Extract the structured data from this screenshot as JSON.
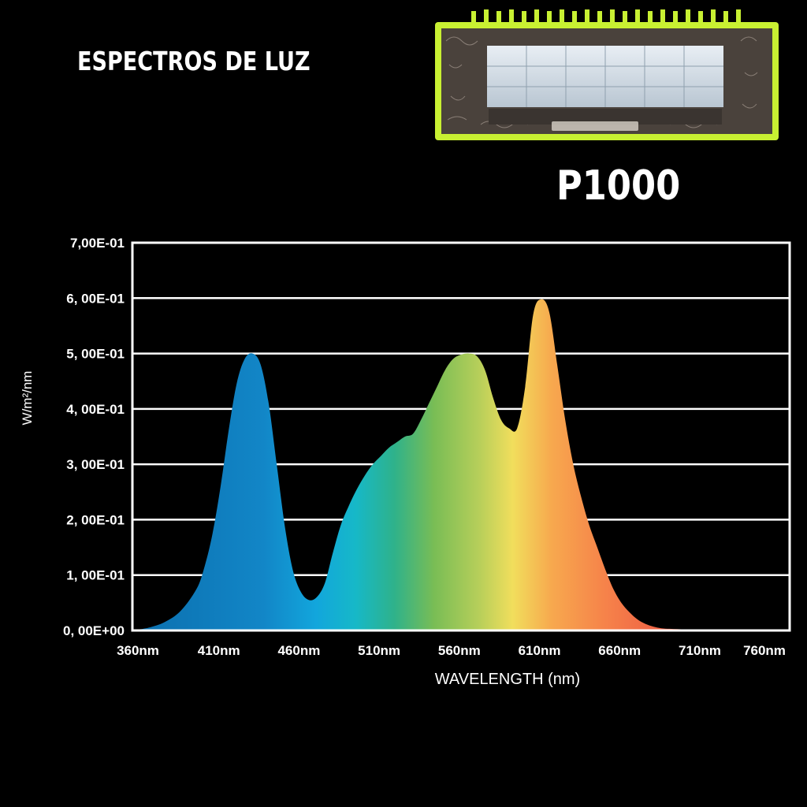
{
  "header": {
    "title": "ESPECTROS DE LUZ",
    "model": "P1000"
  },
  "colors": {
    "background": "#000000",
    "frame": "#c8f032",
    "grid": "#ffffff"
  },
  "chart_data": {
    "type": "area",
    "title": "",
    "xlabel": "WAVELENGTH (nm)",
    "ylabel": "W/m²/nm",
    "xlim": [
      360,
      770
    ],
    "ylim": [
      0,
      0.7
    ],
    "grid": true,
    "y_ticks": [
      {
        "value": 0.0,
        "label": "0, 00E+00"
      },
      {
        "value": 0.1,
        "label": "1, 00E-01"
      },
      {
        "value": 0.2,
        "label": "2, 00E-01"
      },
      {
        "value": 0.3,
        "label": "3, 00E-01"
      },
      {
        "value": 0.4,
        "label": "4, 00E-01"
      },
      {
        "value": 0.5,
        "label": "5, 00E-01"
      },
      {
        "value": 0.6,
        "label": "6, 00E-01"
      },
      {
        "value": 0.7,
        "label": "7,00E-01"
      }
    ],
    "x_ticks": [
      {
        "value": 360,
        "label": "360nm"
      },
      {
        "value": 410,
        "label": "410nm"
      },
      {
        "value": 460,
        "label": "460nm"
      },
      {
        "value": 510,
        "label": "510nm"
      },
      {
        "value": 560,
        "label": "560nm"
      },
      {
        "value": 610,
        "label": "610nm"
      },
      {
        "value": 660,
        "label": "660nm"
      },
      {
        "value": 710,
        "label": "710nm"
      },
      {
        "value": 760,
        "label": "760nm"
      }
    ],
    "series": [
      {
        "x": [
          360,
          370,
          380,
          390,
          400,
          405,
          410,
          415,
          420,
          425,
          430,
          435,
          440,
          445,
          450,
          455,
          460,
          465,
          470,
          475,
          480,
          485,
          490,
          495,
          500,
          505,
          510,
          515,
          520,
          525,
          530,
          535,
          540,
          545,
          550,
          555,
          560,
          565,
          570,
          575,
          580,
          585,
          590,
          595,
          600,
          605,
          610,
          615,
          620,
          625,
          630,
          635,
          640,
          645,
          650,
          655,
          660,
          665,
          670,
          675,
          680,
          685,
          690,
          695,
          700,
          705,
          710,
          715,
          720,
          725,
          730,
          740,
          750,
          760,
          770
        ],
        "y": [
          0.0,
          0.005,
          0.015,
          0.035,
          0.075,
          0.115,
          0.175,
          0.26,
          0.36,
          0.445,
          0.49,
          0.5,
          0.48,
          0.41,
          0.3,
          0.19,
          0.11,
          0.07,
          0.055,
          0.06,
          0.085,
          0.14,
          0.19,
          0.225,
          0.255,
          0.28,
          0.3,
          0.315,
          0.33,
          0.34,
          0.35,
          0.355,
          0.38,
          0.41,
          0.44,
          0.47,
          0.49,
          0.498,
          0.5,
          0.495,
          0.47,
          0.42,
          0.38,
          0.365,
          0.365,
          0.44,
          0.57,
          0.598,
          0.575,
          0.48,
          0.38,
          0.3,
          0.24,
          0.19,
          0.15,
          0.11,
          0.075,
          0.05,
          0.033,
          0.02,
          0.012,
          0.007,
          0.004,
          0.003,
          0.0025,
          0.002,
          0.0018,
          0.0015,
          0.0012,
          0.001,
          0.0008,
          0.0006,
          0.0004,
          0.0002,
          0.0
        ]
      }
    ]
  }
}
